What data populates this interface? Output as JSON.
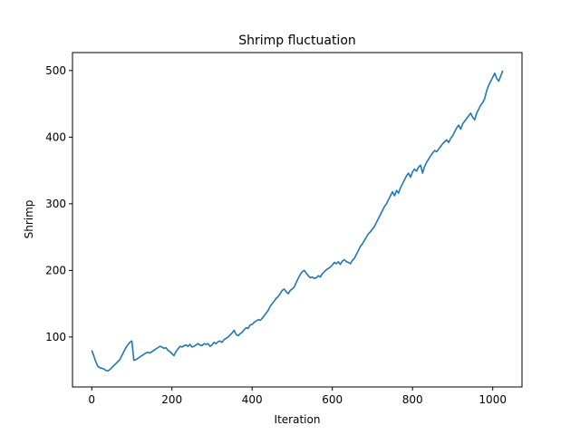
{
  "chart_data": {
    "type": "line",
    "title": "Shrimp fluctuation",
    "xlabel": "Iteration",
    "ylabel": "Shrimp",
    "xlim": [
      -48,
      1073
    ],
    "ylim": [
      25,
      527
    ],
    "xticks": [
      0,
      200,
      400,
      600,
      800,
      1000
    ],
    "yticks": [
      100,
      200,
      300,
      400,
      500
    ],
    "grid": false,
    "series": [
      {
        "color": "#1f77b4",
        "x": [
          0,
          5,
          10,
          15,
          20,
          25,
          30,
          35,
          40,
          45,
          50,
          55,
          60,
          65,
          70,
          75,
          80,
          85,
          90,
          95,
          100,
          105,
          110,
          115,
          120,
          125,
          130,
          135,
          140,
          145,
          150,
          155,
          160,
          165,
          170,
          175,
          180,
          185,
          190,
          195,
          200,
          205,
          210,
          215,
          220,
          225,
          230,
          235,
          240,
          245,
          250,
          255,
          260,
          265,
          270,
          275,
          280,
          285,
          290,
          295,
          300,
          305,
          310,
          315,
          320,
          325,
          330,
          335,
          340,
          345,
          350,
          355,
          360,
          365,
          370,
          375,
          380,
          385,
          390,
          395,
          400,
          405,
          410,
          415,
          420,
          425,
          430,
          435,
          440,
          445,
          450,
          455,
          460,
          465,
          470,
          475,
          480,
          485,
          490,
          495,
          500,
          505,
          510,
          515,
          520,
          525,
          530,
          535,
          540,
          545,
          550,
          555,
          560,
          565,
          570,
          575,
          580,
          585,
          590,
          595,
          600,
          605,
          610,
          615,
          620,
          625,
          630,
          635,
          640,
          645,
          650,
          655,
          660,
          665,
          670,
          675,
          680,
          685,
          690,
          695,
          700,
          705,
          710,
          715,
          720,
          725,
          730,
          735,
          740,
          745,
          750,
          755,
          760,
          765,
          770,
          775,
          780,
          785,
          790,
          795,
          800,
          805,
          810,
          815,
          820,
          825,
          830,
          835,
          840,
          845,
          850,
          855,
          860,
          865,
          870,
          875,
          880,
          885,
          890,
          895,
          900,
          905,
          910,
          915,
          920,
          925,
          930,
          935,
          940,
          945,
          950,
          955,
          960,
          965,
          970,
          975,
          980,
          985,
          990,
          995,
          1000,
          1005,
          1010,
          1015,
          1020,
          1025
        ],
        "values": [
          80,
          72,
          63,
          56,
          54,
          53,
          52,
          50,
          49,
          51,
          54,
          57,
          60,
          63,
          66,
          72,
          78,
          84,
          88,
          92,
          94,
          65,
          66,
          68,
          70,
          72,
          74,
          76,
          77,
          76,
          78,
          80,
          82,
          84,
          86,
          85,
          83,
          84,
          80,
          78,
          75,
          72,
          78,
          82,
          86,
          85,
          87,
          88,
          86,
          89,
          85,
          86,
          88,
          90,
          88,
          87,
          90,
          89,
          90,
          86,
          88,
          92,
          90,
          93,
          94,
          92,
          96,
          98,
          100,
          103,
          106,
          110,
          104,
          102,
          105,
          107,
          111,
          114,
          113,
          118,
          119,
          122,
          124,
          126,
          125,
          128,
          132,
          136,
          140,
          146,
          150,
          154,
          158,
          161,
          165,
          170,
          172,
          168,
          165,
          170,
          172,
          175,
          182,
          188,
          194,
          198,
          200,
          196,
          192,
          189,
          190,
          188,
          189,
          192,
          190,
          195,
          198,
          201,
          203,
          205,
          208,
          212,
          210,
          213,
          209,
          214,
          216,
          213,
          212,
          210,
          215,
          218,
          224,
          230,
          236,
          240,
          245,
          250,
          255,
          258,
          262,
          266,
          272,
          278,
          284,
          290,
          296,
          300,
          306,
          312,
          318,
          312,
          320,
          316,
          324,
          330,
          336,
          342,
          346,
          340,
          348,
          352,
          349,
          355,
          358,
          346,
          356,
          362,
          367,
          372,
          376,
          380,
          378,
          382,
          386,
          390,
          393,
          396,
          392,
          398,
          402,
          408,
          414,
          418,
          412,
          420,
          424,
          428,
          432,
          436,
          430,
          426,
          436,
          442,
          448,
          452,
          458,
          470,
          478,
          484,
          490,
          496,
          488,
          484,
          492,
          500
        ]
      }
    ]
  }
}
